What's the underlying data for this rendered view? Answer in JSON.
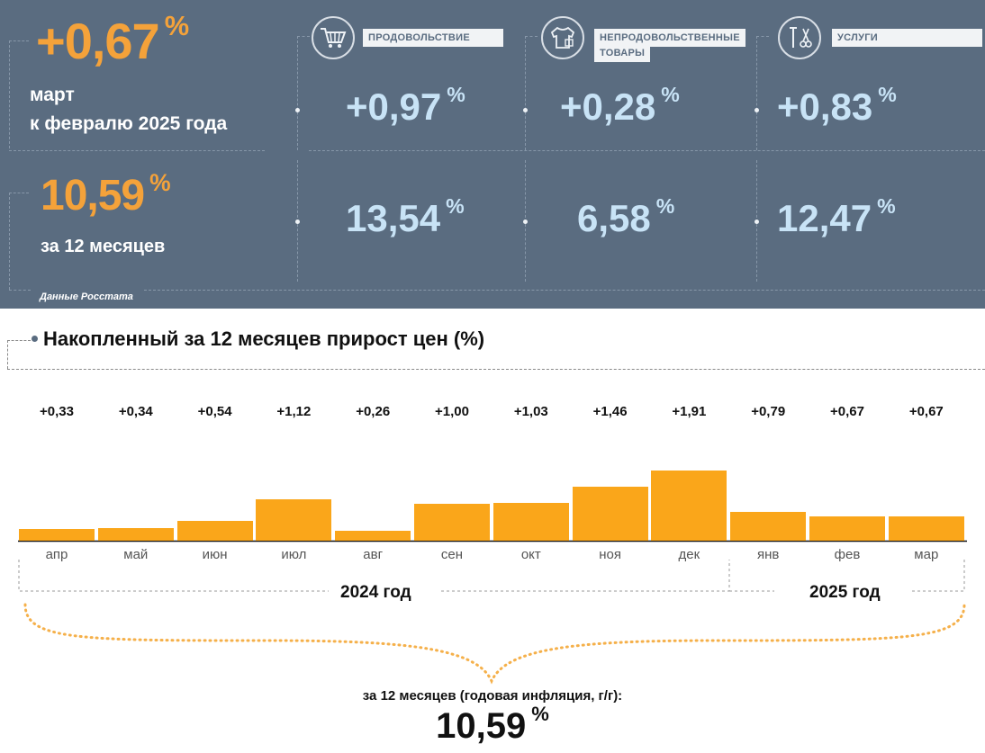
{
  "summary": {
    "monthly": {
      "value": "+0,67",
      "unit": "%",
      "line1": "март",
      "line2": "к февралю 2025 года"
    },
    "annual": {
      "value": "10,59",
      "unit": "%",
      "caption": "за 12 месяцев"
    },
    "source": "Данные Росстата"
  },
  "categories": [
    {
      "label": "ПРОДОВОЛЬСТВИЕ",
      "icon": "shopping-cart-icon",
      "monthly": "+0,97",
      "annual": "13,54",
      "unit": "%"
    },
    {
      "label_line1": "НЕПРОДОВОЛЬСТВЕННЫЕ",
      "label_line2": "ТОВАРЫ",
      "icon": "clothing-icon",
      "monthly": "+0,28",
      "annual": "6,58",
      "unit": "%"
    },
    {
      "label": "УСЛУГИ",
      "icon": "scissors-tools-icon",
      "monthly": "+0,83",
      "annual": "12,47",
      "unit": "%"
    }
  ],
  "colors": {
    "panel": "#5a6c80",
    "accent": "#faa61a",
    "value_light": "#c8e3f6"
  },
  "chart_data": {
    "type": "bar",
    "title": "Накопленный за 12 месяцев прирост цен (%)",
    "categories": [
      "апр",
      "май",
      "июн",
      "июл",
      "авг",
      "сен",
      "окт",
      "ноя",
      "дек",
      "янв",
      "фев",
      "мар"
    ],
    "values": [
      0.33,
      0.34,
      0.54,
      1.12,
      0.26,
      1.0,
      1.03,
      1.46,
      1.91,
      0.79,
      0.67,
      0.67
    ],
    "value_labels": [
      "+0,33",
      "+0,34",
      "+0,54",
      "+1,12",
      "+0,26",
      "+1,00",
      "+1,03",
      "+1,46",
      "+1,91",
      "+0,79",
      "+0,67",
      "+0,67"
    ],
    "years": [
      {
        "label": "2024 год",
        "from": "апр",
        "to": "дек"
      },
      {
        "label": "2025 год",
        "from": "янв",
        "to": "мар"
      }
    ],
    "ylim": [
      0,
      1.91
    ]
  },
  "footer": {
    "caption": "за 12 месяцев (годовая инфляция, г/г):",
    "value": "10,59",
    "unit": "%"
  }
}
